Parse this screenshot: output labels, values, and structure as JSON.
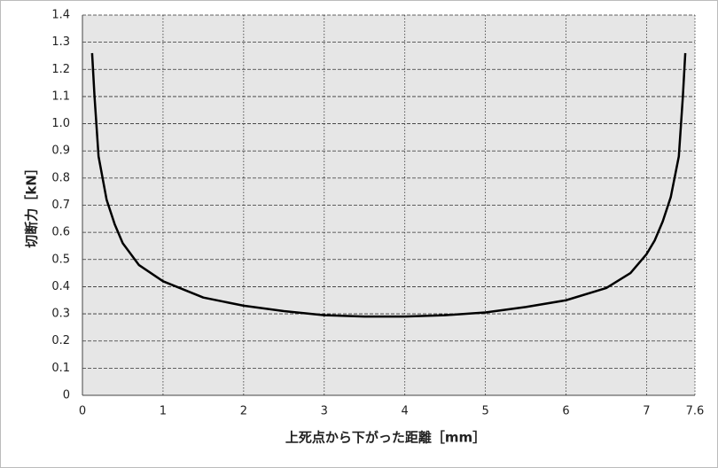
{
  "chart_data": {
    "type": "line",
    "xlabel": "上死点から下がった距離［mm］",
    "ylabel": "切断力［kN］",
    "x": [
      0.12,
      0.15,
      0.2,
      0.3,
      0.4,
      0.5,
      0.7,
      1,
      1.5,
      2,
      2.5,
      3,
      3.5,
      4,
      4.5,
      5,
      5.5,
      6,
      6.5,
      6.8,
      7,
      7.1,
      7.2,
      7.3,
      7.4,
      7.45,
      7.48
    ],
    "series": [
      {
        "color": "#000000",
        "values": [
          1.26,
          1.1,
          0.88,
          0.72,
          0.63,
          0.56,
          0.48,
          0.42,
          0.36,
          0.33,
          0.31,
          0.295,
          0.29,
          0.29,
          0.295,
          0.305,
          0.325,
          0.35,
          0.395,
          0.45,
          0.52,
          0.57,
          0.64,
          0.73,
          0.88,
          1.1,
          1.26
        ]
      }
    ],
    "xlim": [
      0,
      7.6
    ],
    "xticks": [
      0,
      1,
      2,
      3,
      4,
      5,
      6,
      7,
      7.6
    ],
    "ylim": [
      0,
      1.4
    ],
    "yticks": [
      0,
      0.1,
      0.2,
      0.3,
      0.4,
      0.5,
      0.6,
      0.7,
      0.8,
      0.9,
      {
        "value": 1,
        "label": "1.0"
      },
      1.1,
      1.2,
      1.3,
      1.4
    ],
    "grid": true
  }
}
